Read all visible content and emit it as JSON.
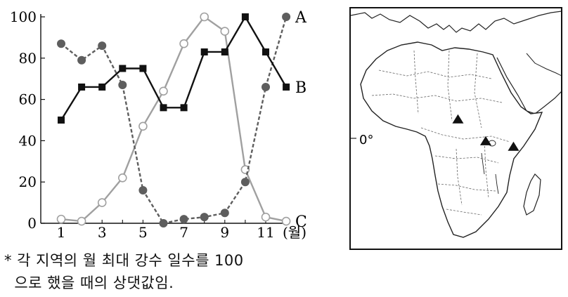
{
  "chart_data": {
    "type": "line",
    "xlabel": "(월)",
    "x": [
      1,
      2,
      3,
      4,
      5,
      6,
      7,
      8,
      9,
      10,
      11,
      12
    ],
    "xticks": [
      "1",
      "3",
      "5",
      "7",
      "9",
      "11"
    ],
    "yticks": [
      "0",
      "20",
      "40",
      "60",
      "80",
      "100"
    ],
    "ylim": [
      0,
      100
    ],
    "series": [
      {
        "name": "A",
        "style": "dashed-filled-circle",
        "color": "#5e5e5e",
        "values": [
          87,
          79,
          86,
          67,
          16,
          0,
          2,
          3,
          5,
          20,
          66,
          100
        ]
      },
      {
        "name": "B",
        "style": "solid-filled-square",
        "color": "#111111",
        "values": [
          50,
          66,
          66,
          75,
          75,
          56,
          56,
          83,
          83,
          100,
          83,
          66
        ]
      },
      {
        "name": "C",
        "style": "solid-open-circle",
        "color": "#a0a0a0",
        "values": [
          2,
          1,
          10,
          22,
          47,
          64,
          87,
          100,
          93,
          26,
          3,
          1
        ]
      }
    ]
  },
  "footnote": {
    "line1": "* 각 지역의 월 최대 강수 일수를 100",
    "line2": "  으로 했을 때의 상댓값임."
  },
  "map": {
    "equator_label": "0°",
    "markers": [
      {
        "label": "",
        "lat": 7,
        "lon": 14
      },
      {
        "label": "",
        "lat": -1,
        "lon": 24
      },
      {
        "label": "",
        "lat": -3,
        "lon": 34
      }
    ]
  }
}
